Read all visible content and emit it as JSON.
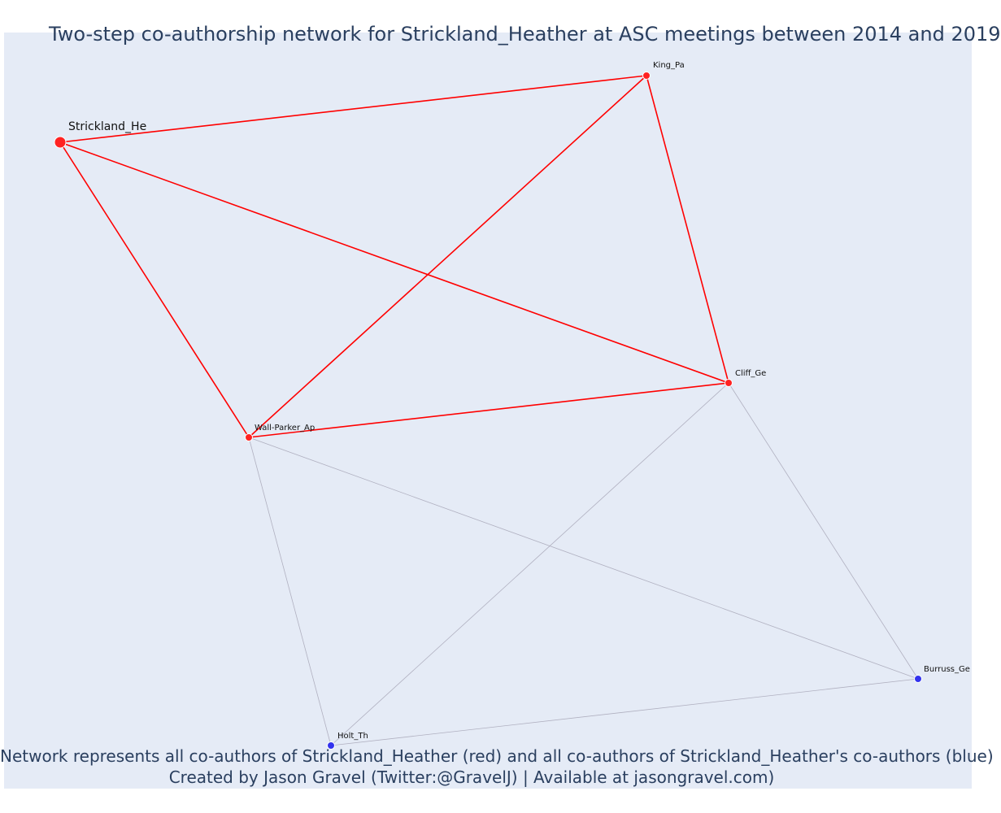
{
  "title": "Two-step co-authorship network for Strickland_Heather at ASC meetings between 2014 and 2019",
  "caption": {
    "line1": "Network represents all co-authors of Strickland_Heather (red) and all co-authors of Strickland_Heather's co-authors (blue)",
    "line2": "Created by Jason Gravel (Twitter:@GravelJ) | Available at jasongravel.com)"
  },
  "colors": {
    "background": "#e5ebf6",
    "direct_edge": "#ff0000",
    "indirect_edge": "#b0b0c0",
    "direct_node": "#ff2222",
    "second_step_node": "#3333ee",
    "text": "#2a3f5f"
  },
  "nodes": [
    {
      "id": "strickland",
      "label": "Strickland_He",
      "group": "focal"
    },
    {
      "id": "king",
      "label": "King_Pa",
      "group": "coauthor"
    },
    {
      "id": "cliff",
      "label": "Cliff_Ge",
      "group": "coauthor"
    },
    {
      "id": "wall",
      "label": "Wall-Parker_Ap",
      "group": "coauthor"
    },
    {
      "id": "holt",
      "label": "Holt_Th",
      "group": "second_step"
    },
    {
      "id": "burruss",
      "label": "Burruss_Ge",
      "group": "second_step"
    }
  ],
  "edges": [
    {
      "source": "strickland",
      "target": "king",
      "type": "direct"
    },
    {
      "source": "strickland",
      "target": "cliff",
      "type": "direct"
    },
    {
      "source": "strickland",
      "target": "wall",
      "type": "direct"
    },
    {
      "source": "king",
      "target": "wall",
      "type": "direct"
    },
    {
      "source": "king",
      "target": "cliff",
      "type": "direct"
    },
    {
      "source": "wall",
      "target": "cliff",
      "type": "direct"
    },
    {
      "source": "wall",
      "target": "holt",
      "type": "indirect"
    },
    {
      "source": "wall",
      "target": "burruss",
      "type": "indirect"
    },
    {
      "source": "cliff",
      "target": "holt",
      "type": "indirect"
    },
    {
      "source": "cliff",
      "target": "burruss",
      "type": "indirect"
    },
    {
      "source": "holt",
      "target": "burruss",
      "type": "indirect"
    }
  ]
}
